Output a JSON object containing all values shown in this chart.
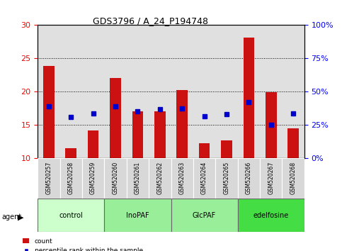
{
  "title": "GDS3796 / A_24_P194748",
  "samples": [
    "GSM520257",
    "GSM520258",
    "GSM520259",
    "GSM520260",
    "GSM520261",
    "GSM520262",
    "GSM520263",
    "GSM520264",
    "GSM520265",
    "GSM520266",
    "GSM520267",
    "GSM520268"
  ],
  "count_values": [
    23.9,
    11.5,
    14.2,
    22.0,
    17.0,
    17.0,
    20.2,
    12.2,
    12.7,
    28.1,
    19.9,
    14.5
  ],
  "count_base": 10,
  "percentile_values": [
    17.8,
    16.2,
    16.7,
    17.8,
    17.0,
    17.4,
    17.5,
    16.3,
    16.6,
    18.4,
    15.0,
    16.7
  ],
  "ylim": [
    10,
    30
  ],
  "yticks": [
    10,
    15,
    20,
    25,
    30
  ],
  "y2lim": [
    0,
    100
  ],
  "y2ticks": [
    0,
    25,
    50,
    75,
    100
  ],
  "y2ticklabels": [
    "0%",
    "25%",
    "50%",
    "75%",
    "100%"
  ],
  "groups": [
    {
      "label": "control",
      "indices": [
        0,
        1,
        2
      ],
      "color": "#ccffcc"
    },
    {
      "label": "InoPAF",
      "indices": [
        3,
        4,
        5
      ],
      "color": "#99ee99"
    },
    {
      "label": "GlcPAF",
      "indices": [
        6,
        7,
        8
      ],
      "color": "#99ee99"
    },
    {
      "label": "edelfosine",
      "indices": [
        9,
        10,
        11
      ],
      "color": "#44dd44"
    }
  ],
  "bar_color": "#cc1111",
  "dot_color": "#0000cc",
  "bar_width": 0.5,
  "legend_count_color": "#cc1111",
  "legend_dot_color": "#0000cc",
  "plot_bg": "#e0e0e0",
  "label_bg": "#d0d0d0"
}
